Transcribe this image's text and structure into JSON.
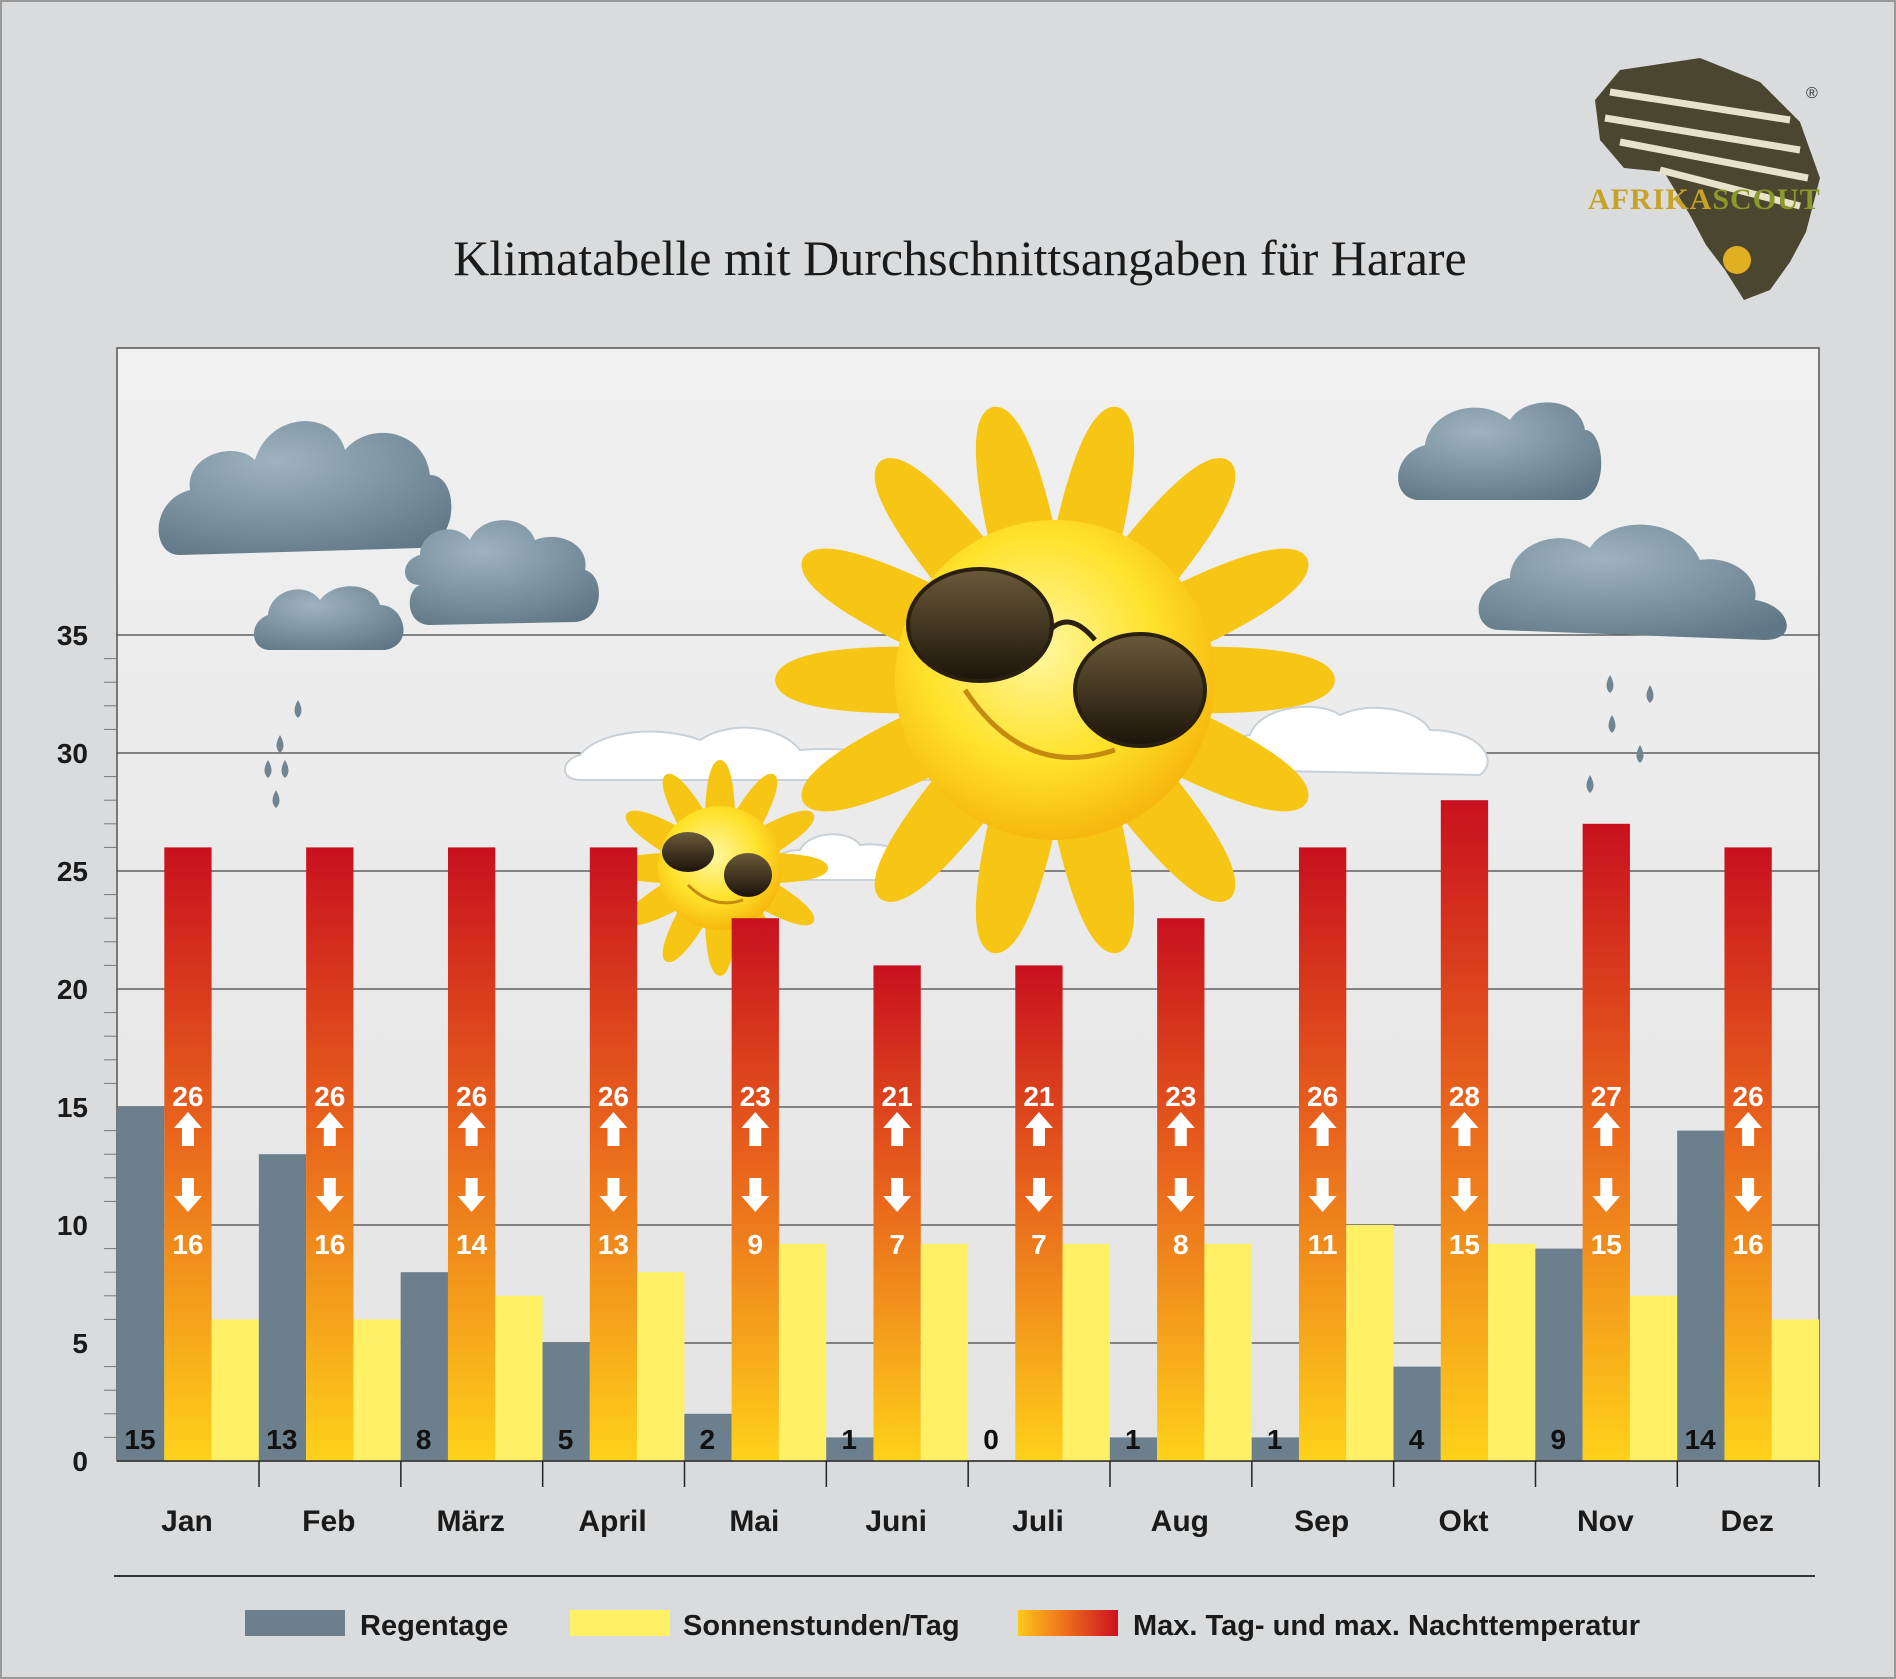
{
  "chart_data": {
    "type": "bar",
    "title": "Klimatabelle mit Durchschnittsangaben für Harare",
    "categories": [
      "Jan",
      "Feb",
      "März",
      "April",
      "Mai",
      "Juni",
      "Juli",
      "Aug",
      "Sep",
      "Okt",
      "Nov",
      "Dez"
    ],
    "ylim": [
      0,
      35
    ],
    "yticks": [
      0,
      5,
      10,
      15,
      20,
      25,
      30,
      35
    ],
    "grid": true,
    "legend_position": "bottom",
    "series": [
      {
        "name": "Regentage",
        "color": "#6b7f8c",
        "values": [
          15,
          13,
          8,
          5,
          2,
          1,
          0,
          1,
          1,
          4,
          9,
          14
        ]
      },
      {
        "name": "Sonnenstunden/Tag",
        "color": "#fff066",
        "values": [
          6,
          6,
          7,
          8,
          9.2,
          9.2,
          9.2,
          9.2,
          10,
          9.2,
          7,
          6
        ]
      },
      {
        "name": "Max. Tag- und max. Nachttemperatur",
        "color": "#d9121f",
        "day_max": [
          26,
          26,
          26,
          26,
          23,
          21,
          21,
          23,
          26,
          28,
          27,
          26
        ],
        "night_max": [
          16,
          16,
          14,
          13,
          9,
          7,
          7,
          8,
          11,
          15,
          15,
          16
        ]
      }
    ]
  },
  "logo": {
    "text_part1": "AFRIKA",
    "text_part2": "SCOUT",
    "registered": "®",
    "color1": "#c7a227",
    "color2": "#8a9a2a"
  }
}
